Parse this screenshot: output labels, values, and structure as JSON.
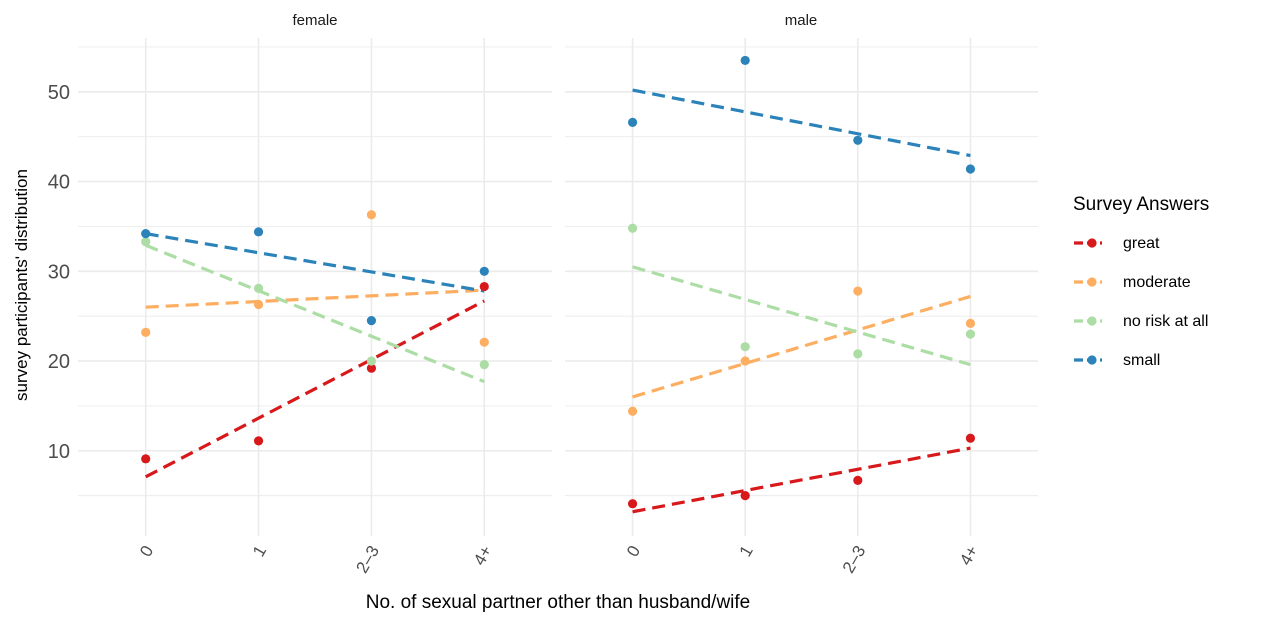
{
  "chart_data": {
    "type": "scatter",
    "facets": [
      "female",
      "male"
    ],
    "categories": [
      "0",
      "1",
      "2–3",
      "4+"
    ],
    "xlabel": "No. of sexual partner other than husband/wife",
    "ylabel": "survey participants' distribution",
    "ylim": [
      0.5,
      56
    ],
    "y_ticks": [
      10,
      20,
      30,
      40,
      50
    ],
    "grid": true,
    "trend_lines": "dashed linear fit per series",
    "legend": {
      "title": "Survey Answers",
      "position": "right"
    },
    "series": [
      {
        "name": "great",
        "color": "#d7191c",
        "values": {
          "female": [
            9.1,
            11.1,
            19.2,
            28.3
          ],
          "male": [
            4.1,
            5.0,
            6.7,
            11.4
          ]
        },
        "trend": {
          "female": [
            7.1,
            26.7
          ],
          "male": [
            3.2,
            10.3
          ]
        }
      },
      {
        "name": "moderate",
        "color": "#fdae61",
        "values": {
          "female": [
            23.2,
            26.3,
            36.3,
            22.1
          ],
          "male": [
            14.4,
            20.0,
            27.8,
            24.2
          ]
        },
        "trend": {
          "female": [
            26.0,
            27.9
          ],
          "male": [
            16.0,
            27.2
          ]
        }
      },
      {
        "name": "no risk at all",
        "color": "#abdda4",
        "values": {
          "female": [
            33.3,
            28.1,
            20.0,
            19.6
          ],
          "male": [
            34.8,
            21.6,
            20.8,
            23.0
          ]
        },
        "trend": {
          "female": [
            32.9,
            17.7
          ],
          "male": [
            30.5,
            19.6
          ]
        }
      },
      {
        "name": "small",
        "color": "#2b83ba",
        "values": {
          "female": [
            34.2,
            34.4,
            24.5,
            30.0
          ],
          "male": [
            46.6,
            53.5,
            44.6,
            41.4
          ]
        },
        "trend": {
          "female": [
            34.2,
            27.8
          ],
          "male": [
            50.2,
            42.9
          ]
        }
      }
    ]
  }
}
